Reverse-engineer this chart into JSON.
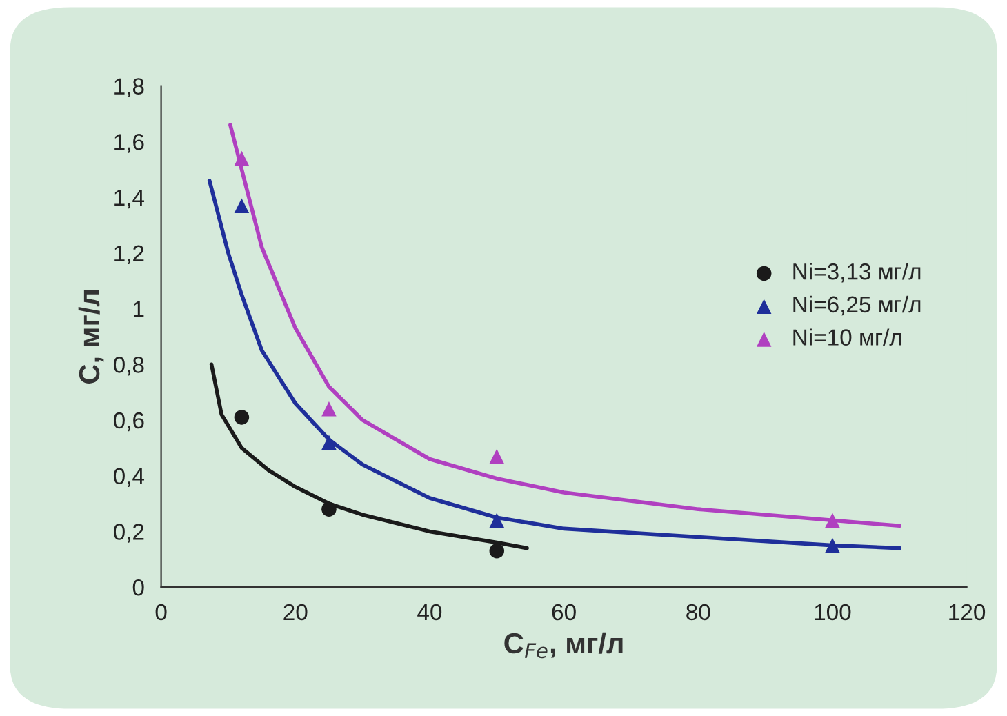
{
  "chart_data": {
    "type": "scatter",
    "xlabel": "C$_{Fe}$, мг/л",
    "ylabel": "C, мг/л",
    "xlim": [
      0,
      120
    ],
    "xticks": [
      0,
      20,
      40,
      60,
      80,
      100,
      120
    ],
    "ylim": [
      0,
      1.8
    ],
    "yticks": [
      0,
      {
        "value": 0.2,
        "label": "0,2"
      },
      {
        "value": 0.4,
        "label": "0,4"
      },
      {
        "value": 0.6,
        "label": "0,6"
      },
      {
        "value": 0.8,
        "label": "0,8"
      },
      1,
      {
        "value": 1.2,
        "label": "1,2"
      },
      {
        "value": 1.4,
        "label": "1,4"
      },
      {
        "value": 1.6,
        "label": "1,6"
      },
      {
        "value": 1.8,
        "label": "1,8"
      }
    ],
    "grid": false,
    "legend": "right",
    "series": [
      {
        "name": "Ni=3,13 мг/л",
        "marker": "circle",
        "color": "#1a1a1a",
        "x": [
          12,
          25,
          50
        ],
        "values": [
          0.61,
          0.28,
          0.13
        ]
      },
      {
        "name": "Ni=6,25 мг/л",
        "marker": "triangle",
        "color": "#1f2f9a",
        "x": [
          12,
          25,
          50,
          100
        ],
        "values": [
          1.37,
          0.52,
          0.24,
          0.15
        ]
      },
      {
        "name": "Ni=10 мг/л",
        "marker": "triangle",
        "color": "#b040c0",
        "x": [
          12,
          25,
          50,
          100
        ],
        "values": [
          1.54,
          0.64,
          0.47,
          0.24
        ]
      },
      {
        "type": "line",
        "color": "#1a1a1a",
        "x": [
          7.5,
          9,
          12,
          16,
          20,
          25,
          30,
          40,
          50,
          54.5
        ],
        "values": [
          0.8,
          0.62,
          0.5,
          0.42,
          0.36,
          0.3,
          0.26,
          0.2,
          0.16,
          0.14
        ]
      },
      {
        "type": "line",
        "color": "#1f2f9a",
        "x": [
          7.2,
          10,
          12,
          15,
          20,
          25,
          30,
          40,
          50,
          60,
          80,
          100,
          110
        ],
        "values": [
          1.46,
          1.2,
          1.05,
          0.85,
          0.66,
          0.53,
          0.44,
          0.32,
          0.25,
          0.21,
          0.18,
          0.15,
          0.14
        ]
      },
      {
        "type": "line",
        "color": "#b040c0",
        "x": [
          10.3,
          12,
          15,
          20,
          25,
          30,
          40,
          50,
          60,
          80,
          100,
          110
        ],
        "values": [
          1.66,
          1.5,
          1.22,
          0.93,
          0.72,
          0.6,
          0.46,
          0.39,
          0.34,
          0.28,
          0.24,
          0.22
        ]
      }
    ]
  }
}
